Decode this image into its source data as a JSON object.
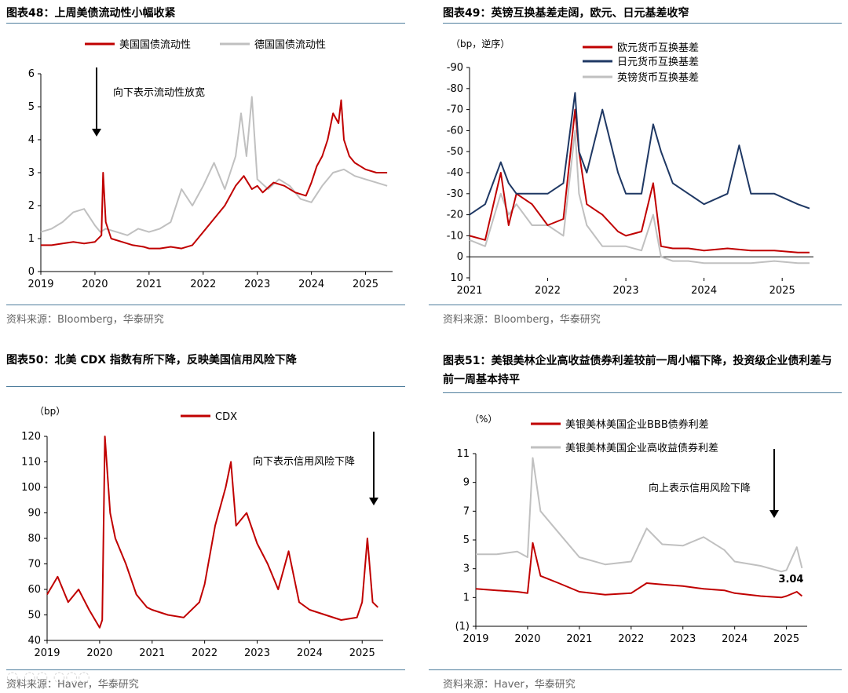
{
  "chart_data": [
    {
      "type": "line",
      "title": "图表48：上周美债流动性小幅收紧",
      "y_label": "",
      "x_ticks": [
        "2019",
        "2020",
        "2021",
        "2022",
        "2023",
        "2024",
        "2025"
      ],
      "y_ticks": [
        "0",
        "1",
        "2",
        "3",
        "4",
        "5",
        "6"
      ],
      "ylim": [
        0,
        6
      ],
      "y_inverted": false,
      "annotation": "向下表示流动性放宽",
      "legend": [
        "美国国债流动性",
        "德国国债流动性"
      ],
      "source": "资料来源：Bloomberg，华泰研究",
      "series": [
        {
          "name": "美国国债流动性",
          "color": "#c00000",
          "x": [
            2019.0,
            2019.2,
            2019.4,
            2019.6,
            2019.8,
            2020.0,
            2020.12,
            2020.15,
            2020.2,
            2020.3,
            2020.5,
            2020.7,
            2020.9,
            2021.0,
            2021.2,
            2021.4,
            2021.6,
            2021.8,
            2021.9,
            2022.0,
            2022.2,
            2022.4,
            2022.6,
            2022.75,
            2022.9,
            2023.0,
            2023.1,
            2023.3,
            2023.5,
            2023.7,
            2023.9,
            2024.0,
            2024.1,
            2024.2,
            2024.3,
            2024.4,
            2024.5,
            2024.55,
            2024.6,
            2024.7,
            2024.8,
            2025.0,
            2025.2,
            2025.4
          ],
          "y": [
            0.8,
            0.8,
            0.85,
            0.9,
            0.85,
            0.9,
            1.1,
            3.0,
            1.5,
            1.0,
            0.9,
            0.8,
            0.75,
            0.7,
            0.7,
            0.75,
            0.7,
            0.8,
            1.0,
            1.2,
            1.6,
            2.0,
            2.6,
            2.9,
            2.5,
            2.6,
            2.4,
            2.7,
            2.6,
            2.4,
            2.3,
            2.7,
            3.2,
            3.5,
            4.0,
            4.8,
            4.5,
            5.2,
            4.0,
            3.5,
            3.3,
            3.1,
            3.0,
            3.0
          ]
        },
        {
          "name": "德国国债流动性",
          "color": "#c0c0c0",
          "x": [
            2019.0,
            2019.2,
            2019.4,
            2019.6,
            2019.8,
            2020.0,
            2020.1,
            2020.2,
            2020.4,
            2020.6,
            2020.8,
            2021.0,
            2021.2,
            2021.4,
            2021.6,
            2021.8,
            2022.0,
            2022.2,
            2022.4,
            2022.6,
            2022.7,
            2022.8,
            2022.9,
            2023.0,
            2023.2,
            2023.4,
            2023.6,
            2023.8,
            2024.0,
            2024.2,
            2024.4,
            2024.6,
            2024.8,
            2025.0,
            2025.2,
            2025.4
          ],
          "y": [
            1.2,
            1.3,
            1.5,
            1.8,
            1.9,
            1.4,
            1.2,
            1.3,
            1.2,
            1.1,
            1.3,
            1.2,
            1.3,
            1.5,
            2.5,
            2.0,
            2.6,
            3.3,
            2.5,
            3.5,
            4.8,
            3.5,
            5.3,
            2.8,
            2.5,
            2.8,
            2.6,
            2.2,
            2.1,
            2.6,
            3.0,
            3.1,
            2.9,
            2.8,
            2.7,
            2.6
          ]
        }
      ]
    },
    {
      "type": "line",
      "title": "图表49：英镑互换基差走阔，欧元、日元基差收窄",
      "y_label": "（bp，逆序）",
      "x_ticks": [
        "2021",
        "2022",
        "2023",
        "2024",
        "2025"
      ],
      "y_ticks": [
        "-90",
        "-80",
        "-70",
        "-60",
        "-50",
        "-40",
        "-30",
        "-20",
        "-10",
        "0",
        "10"
      ],
      "ylim": [
        -90,
        10
      ],
      "y_inverted": true,
      "legend": [
        "欧元货币互换基差",
        "日元货币互换基差",
        "英镑货币互换基差"
      ],
      "source": "资料来源：Bloomberg，华泰研究",
      "series": [
        {
          "name": "欧元货币互换基差",
          "color": "#c00000",
          "x": [
            2021.0,
            2021.2,
            2021.4,
            2021.5,
            2021.6,
            2021.8,
            2022.0,
            2022.2,
            2022.35,
            2022.4,
            2022.5,
            2022.7,
            2022.9,
            2023.0,
            2023.2,
            2023.35,
            2023.45,
            2023.6,
            2023.8,
            2024.0,
            2024.3,
            2024.6,
            2024.9,
            2025.2,
            2025.35
          ],
          "y": [
            -10,
            -8,
            -40,
            -15,
            -30,
            -25,
            -15,
            -18,
            -70,
            -50,
            -25,
            -20,
            -12,
            -10,
            -12,
            -35,
            -5,
            -4,
            -4,
            -3,
            -4,
            -3,
            -3,
            -2,
            -2
          ]
        },
        {
          "name": "日元货币互换基差",
          "color": "#1f3864",
          "x": [
            2021.0,
            2021.2,
            2021.4,
            2021.5,
            2021.6,
            2021.8,
            2022.0,
            2022.2,
            2022.35,
            2022.4,
            2022.5,
            2022.7,
            2022.9,
            2023.0,
            2023.2,
            2023.35,
            2023.45,
            2023.6,
            2023.8,
            2024.0,
            2024.3,
            2024.45,
            2024.6,
            2024.9,
            2025.2,
            2025.35
          ],
          "y": [
            -20,
            -25,
            -45,
            -35,
            -30,
            -30,
            -30,
            -35,
            -78,
            -50,
            -40,
            -70,
            -40,
            -30,
            -30,
            -63,
            -50,
            -35,
            -30,
            -25,
            -30,
            -53,
            -30,
            -30,
            -25,
            -23
          ]
        },
        {
          "name": "英镑货币互换基差",
          "color": "#c0c0c0",
          "x": [
            2021.0,
            2021.2,
            2021.4,
            2021.5,
            2021.6,
            2021.8,
            2022.0,
            2022.2,
            2022.35,
            2022.4,
            2022.5,
            2022.7,
            2022.9,
            2023.0,
            2023.2,
            2023.35,
            2023.45,
            2023.6,
            2023.8,
            2024.0,
            2024.3,
            2024.6,
            2024.9,
            2025.2,
            2025.35
          ],
          "y": [
            -8,
            -5,
            -30,
            -20,
            -25,
            -15,
            -15,
            -10,
            -60,
            -30,
            -15,
            -5,
            -5,
            -5,
            -3,
            -20,
            0,
            2,
            2,
            3,
            3,
            3,
            2,
            3,
            3
          ]
        }
      ]
    },
    {
      "type": "line",
      "title": "图表50：北美 CDX 指数有所下降，反映美国信用风险下降",
      "y_label": "（bp）",
      "x_ticks": [
        "2019",
        "2020",
        "2021",
        "2022",
        "2023",
        "2024",
        "2025"
      ],
      "y_ticks": [
        "40",
        "50",
        "60",
        "70",
        "80",
        "90",
        "100",
        "110",
        "120"
      ],
      "ylim": [
        40,
        120
      ],
      "y_inverted": false,
      "annotation": "向下表示信用风险下降",
      "legend": [
        "CDX"
      ],
      "source": "资料来源：Haver，华泰研究",
      "series": [
        {
          "name": "CDX",
          "color": "#c00000",
          "x": [
            2019.0,
            2019.2,
            2019.4,
            2019.6,
            2019.8,
            2020.0,
            2020.05,
            2020.1,
            2020.2,
            2020.3,
            2020.5,
            2020.7,
            2020.9,
            2021.0,
            2021.3,
            2021.6,
            2021.9,
            2022.0,
            2022.2,
            2022.4,
            2022.5,
            2022.6,
            2022.8,
            2023.0,
            2023.2,
            2023.4,
            2023.6,
            2023.8,
            2024.0,
            2024.3,
            2024.6,
            2024.9,
            2025.0,
            2025.1,
            2025.2,
            2025.3
          ],
          "y": [
            58,
            65,
            55,
            60,
            52,
            45,
            48,
            120,
            90,
            80,
            70,
            58,
            53,
            52,
            50,
            49,
            55,
            62,
            85,
            100,
            110,
            85,
            90,
            78,
            70,
            60,
            75,
            55,
            52,
            50,
            48,
            49,
            55,
            80,
            55,
            53
          ]
        }
      ]
    },
    {
      "type": "line",
      "title": "图表51：美银美林企业高收益债券利差较前一周小幅下降，投资级企业债利差与前一周基本持平",
      "y_label": "（%）",
      "x_ticks": [
        "2019",
        "2020",
        "2021",
        "2022",
        "2023",
        "2024",
        "2025"
      ],
      "y_ticks": [
        "(1)",
        "1",
        "3",
        "5",
        "7",
        "9",
        "11"
      ],
      "ylim": [
        -1,
        11
      ],
      "y_inverted": false,
      "annotation": "向上表示信用风险下降",
      "value_label": "3.04",
      "legend": [
        "美银美林美国企业BBB债券利差",
        "美银美林美国企业高收益债券利差"
      ],
      "source": "资料来源：Haver，华泰研究",
      "series": [
        {
          "name": "美银美林美国企业BBB债券利差",
          "color": "#c00000",
          "x": [
            2019.0,
            2019.4,
            2019.8,
            2020.0,
            2020.1,
            2020.25,
            2020.6,
            2021.0,
            2021.5,
            2022.0,
            2022.3,
            2022.6,
            2023.0,
            2023.4,
            2023.8,
            2024.0,
            2024.5,
            2024.9,
            2025.0,
            2025.2,
            2025.3
          ],
          "y": [
            1.6,
            1.5,
            1.4,
            1.3,
            4.8,
            2.5,
            2.0,
            1.4,
            1.2,
            1.3,
            2.0,
            1.9,
            1.8,
            1.6,
            1.5,
            1.3,
            1.1,
            1.0,
            1.1,
            1.4,
            1.1
          ]
        },
        {
          "name": "美银美林美国企业高收益债券利差",
          "color": "#c0c0c0",
          "x": [
            2019.0,
            2019.4,
            2019.8,
            2020.0,
            2020.1,
            2020.25,
            2020.6,
            2021.0,
            2021.5,
            2022.0,
            2022.3,
            2022.6,
            2023.0,
            2023.4,
            2023.8,
            2024.0,
            2024.5,
            2024.9,
            2025.0,
            2025.2,
            2025.3
          ],
          "y": [
            4.0,
            4.0,
            4.2,
            3.8,
            10.7,
            7.0,
            5.5,
            3.8,
            3.3,
            3.5,
            5.8,
            4.7,
            4.6,
            5.2,
            4.3,
            3.5,
            3.2,
            2.8,
            2.9,
            4.5,
            3.04
          ]
        }
      ]
    }
  ]
}
